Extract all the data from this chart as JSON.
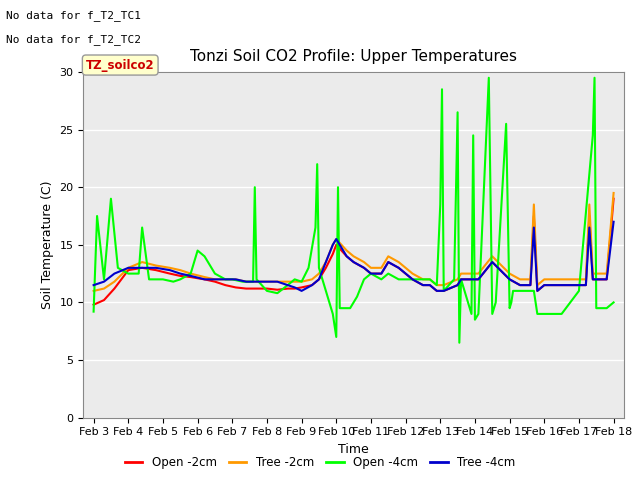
{
  "title": "Tonzi Soil CO2 Profile: Upper Temperatures",
  "xlabel": "Time",
  "ylabel": "Soil Temperature (C)",
  "ylim": [
    0,
    30
  ],
  "yticks": [
    0,
    5,
    10,
    15,
    20,
    25,
    30
  ],
  "background_color": "#ebebeb",
  "fig_background": "#ffffff",
  "no_data_text": [
    "No data for f_T2_TC1",
    "No data for f_T2_TC2"
  ],
  "legend_label": "TZ_soilco2",
  "series_labels": [
    "Open -2cm",
    "Tree -2cm",
    "Open -4cm",
    "Tree -4cm"
  ],
  "series_colors": [
    "#ff0000",
    "#ff9900",
    "#00ff00",
    "#0000cc"
  ],
  "x_tick_labels": [
    "Feb 3",
    "Feb 4",
    "Feb 5",
    "Feb 6",
    "Feb 7",
    "Feb 8",
    "Feb 9",
    "Feb 10",
    "Feb 11",
    "Feb 12",
    "Feb 13",
    "Feb 14",
    "Feb 15",
    "Feb 16",
    "Feb 17",
    "Feb 18"
  ],
  "open_2cm_x": [
    0,
    0.3,
    0.6,
    1.0,
    1.4,
    1.8,
    2.2,
    2.5,
    2.8,
    3.2,
    3.5,
    3.8,
    4.1,
    4.4,
    4.7,
    5.0,
    5.3,
    5.6,
    5.8,
    6.0,
    6.3,
    6.5,
    6.7,
    6.9,
    7.0,
    7.3,
    7.5,
    7.8,
    8.0,
    8.3,
    8.5,
    8.8,
    9.0,
    9.2,
    9.5,
    9.7,
    9.9,
    10.0,
    10.1,
    10.5,
    10.6,
    11.0,
    11.1,
    11.5,
    12.0,
    12.3,
    12.6,
    12.7,
    12.8,
    13.0,
    13.5,
    14.0,
    14.2,
    14.3,
    14.4,
    14.8,
    15.0
  ],
  "open_2cm_y": [
    9.8,
    10.2,
    11.2,
    12.8,
    13.0,
    12.8,
    12.5,
    12.3,
    12.2,
    12.0,
    11.8,
    11.5,
    11.3,
    11.2,
    11.2,
    11.2,
    11.1,
    11.2,
    11.2,
    11.3,
    11.5,
    12.0,
    13.0,
    14.2,
    15.0,
    14.0,
    13.5,
    13.0,
    12.5,
    12.5,
    13.5,
    13.0,
    12.5,
    12.0,
    11.5,
    11.5,
    11.0,
    11.0,
    11.0,
    11.5,
    12.0,
    12.0,
    12.0,
    13.5,
    12.0,
    11.5,
    11.5,
    17.5,
    11.0,
    11.5,
    11.5,
    11.5,
    11.5,
    17.5,
    12.0,
    12.0,
    19.0
  ],
  "tree_2cm_x": [
    0,
    0.3,
    0.6,
    1.0,
    1.4,
    1.8,
    2.2,
    2.5,
    2.8,
    3.2,
    3.5,
    3.8,
    4.1,
    4.4,
    4.7,
    5.0,
    5.3,
    5.6,
    5.8,
    6.0,
    6.3,
    6.5,
    6.7,
    6.9,
    7.0,
    7.3,
    7.5,
    7.8,
    8.0,
    8.3,
    8.5,
    8.8,
    9.0,
    9.2,
    9.5,
    9.7,
    9.9,
    10.0,
    10.1,
    10.5,
    10.6,
    11.0,
    11.1,
    11.5,
    12.0,
    12.3,
    12.6,
    12.7,
    12.8,
    13.0,
    13.5,
    14.0,
    14.2,
    14.3,
    14.4,
    14.8,
    15.0
  ],
  "tree_2cm_y": [
    11.0,
    11.2,
    11.8,
    13.0,
    13.5,
    13.2,
    13.0,
    12.8,
    12.5,
    12.2,
    12.0,
    12.0,
    12.0,
    11.8,
    11.8,
    11.8,
    11.8,
    11.8,
    11.8,
    11.8,
    12.0,
    12.5,
    13.5,
    15.0,
    15.5,
    14.5,
    14.0,
    13.5,
    13.0,
    13.0,
    14.0,
    13.5,
    13.0,
    12.5,
    12.0,
    12.0,
    11.5,
    11.5,
    11.5,
    12.0,
    12.5,
    12.5,
    12.5,
    14.0,
    12.5,
    12.0,
    12.0,
    18.5,
    11.5,
    12.0,
    12.0,
    12.0,
    12.0,
    18.5,
    12.5,
    12.5,
    19.5
  ],
  "open_4cm_x": [
    0,
    0.1,
    0.3,
    0.5,
    0.7,
    1.0,
    1.3,
    1.4,
    1.6,
    2.0,
    2.3,
    2.5,
    2.8,
    3.0,
    3.2,
    3.5,
    3.8,
    4.0,
    4.3,
    4.6,
    4.65,
    4.7,
    5.0,
    5.3,
    5.6,
    5.8,
    6.0,
    6.2,
    6.4,
    6.45,
    6.5,
    6.7,
    6.9,
    7.0,
    7.05,
    7.1,
    7.4,
    7.6,
    7.8,
    8.0,
    8.3,
    8.5,
    8.8,
    9.0,
    9.2,
    9.5,
    9.7,
    9.9,
    10.0,
    10.05,
    10.1,
    10.4,
    10.5,
    10.55,
    10.6,
    10.9,
    10.95,
    11.0,
    11.1,
    11.4,
    11.5,
    11.6,
    11.9,
    12.0,
    12.05,
    12.1,
    12.4,
    12.7,
    12.8,
    13.0,
    13.5,
    14.0,
    14.4,
    14.45,
    14.5,
    14.8,
    15.0
  ],
  "open_4cm_y": [
    9.2,
    17.5,
    12.0,
    19.0,
    13.0,
    12.5,
    12.5,
    16.5,
    12.0,
    12.0,
    11.8,
    12.0,
    12.5,
    14.5,
    14.0,
    12.5,
    12.0,
    12.0,
    11.8,
    11.8,
    20.0,
    12.0,
    11.0,
    10.8,
    11.5,
    12.0,
    11.8,
    13.0,
    16.5,
    22.0,
    13.0,
    11.0,
    9.0,
    7.0,
    20.0,
    9.5,
    9.5,
    10.5,
    12.0,
    12.5,
    12.0,
    12.5,
    12.0,
    12.0,
    12.0,
    12.0,
    12.0,
    11.5,
    18.5,
    28.5,
    11.0,
    12.0,
    26.5,
    6.5,
    12.0,
    9.0,
    24.5,
    8.5,
    9.0,
    29.5,
    9.0,
    10.0,
    25.5,
    9.5,
    10.0,
    11.0,
    11.0,
    11.0,
    9.0,
    9.0,
    9.0,
    11.0,
    24.5,
    29.5,
    9.5,
    9.5,
    10.0
  ],
  "tree_4cm_x": [
    0,
    0.3,
    0.6,
    1.0,
    1.4,
    1.8,
    2.2,
    2.5,
    2.8,
    3.2,
    3.5,
    3.8,
    4.1,
    4.4,
    4.7,
    5.0,
    5.3,
    5.6,
    5.8,
    6.0,
    6.3,
    6.5,
    6.7,
    6.9,
    7.0,
    7.3,
    7.5,
    7.8,
    8.0,
    8.3,
    8.5,
    8.8,
    9.0,
    9.2,
    9.5,
    9.7,
    9.9,
    10.0,
    10.1,
    10.5,
    10.6,
    11.0,
    11.1,
    11.5,
    12.0,
    12.3,
    12.6,
    12.7,
    12.8,
    13.0,
    13.5,
    14.0,
    14.2,
    14.3,
    14.4,
    14.8,
    15.0
  ],
  "tree_4cm_y": [
    11.5,
    11.8,
    12.5,
    13.0,
    13.0,
    13.0,
    12.8,
    12.5,
    12.3,
    12.0,
    12.0,
    12.0,
    12.0,
    11.8,
    11.8,
    11.8,
    11.8,
    11.5,
    11.3,
    11.0,
    11.5,
    12.0,
    13.5,
    15.0,
    15.5,
    14.0,
    13.5,
    13.0,
    12.5,
    12.5,
    13.5,
    13.0,
    12.5,
    12.0,
    11.5,
    11.5,
    11.0,
    11.0,
    11.0,
    11.5,
    12.0,
    12.0,
    12.0,
    13.5,
    12.0,
    11.5,
    11.5,
    16.5,
    11.0,
    11.5,
    11.5,
    11.5,
    11.5,
    16.5,
    12.0,
    12.0,
    17.0
  ]
}
